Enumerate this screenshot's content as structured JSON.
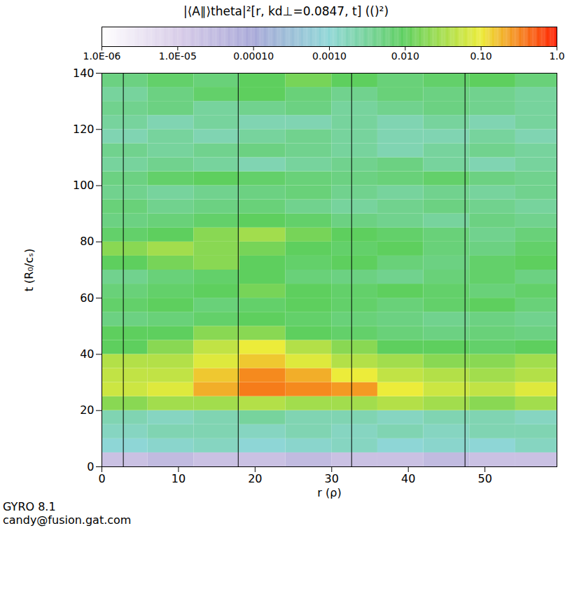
{
  "chart_data": {
    "type": "heatmap",
    "title": "|⟨A∥⟩theta|²[r, kd⊥=0.0847, t] (()²)",
    "x_label": "r (ρ)",
    "y_label": "t (R₀/cₛ)",
    "footer": [
      "GYRO 8.1",
      "candy@fusion.gat.com"
    ],
    "xlim": [
      0,
      59.4
    ],
    "xticks": [
      0,
      10,
      20,
      30,
      40,
      50
    ],
    "ylim": [
      0,
      140
    ],
    "yticks": [
      0,
      20,
      40,
      60,
      80,
      100,
      120,
      140
    ],
    "vlines": [
      2.8,
      17.8,
      32.6,
      47.4
    ],
    "log": "color",
    "colorbar": {
      "range": [
        1e-06,
        1
      ],
      "ticks": [
        {
          "value": 1e-06,
          "label": "1.0E-06"
        },
        {
          "value": 1e-05,
          "label": "1.0E-05"
        },
        {
          "value": 0.0001,
          "label": "0.00010"
        },
        {
          "value": 0.001,
          "label": "0.0010"
        },
        {
          "value": 0.01,
          "label": "0.010"
        },
        {
          "value": 0.1,
          "label": "0.10"
        },
        {
          "value": 1,
          "label": "1.0"
        }
      ]
    },
    "x_bins": [
      0,
      6,
      12,
      18,
      24,
      30,
      36,
      42,
      48,
      54,
      60
    ],
    "y_bins": [
      0,
      5,
      10,
      15,
      20,
      25,
      30,
      35,
      40,
      45,
      50,
      55,
      60,
      65,
      70,
      75,
      80,
      85,
      90,
      95,
      100,
      105,
      110,
      115,
      120,
      125,
      130,
      135,
      140
    ],
    "cells": [
      [
        2e-05,
        3e-05,
        2e-05,
        2e-05,
        3e-05,
        2e-05,
        2e-05,
        3e-05,
        2e-05,
        2e-05
      ],
      [
        0.001,
        0.0012,
        0.0015,
        0.001,
        0.0012,
        0.0015,
        0.001,
        0.0012,
        0.001,
        0.0015
      ],
      [
        0.0015,
        0.002,
        0.002,
        0.0015,
        0.002,
        0.0015,
        0.002,
        0.0015,
        0.002,
        0.002
      ],
      [
        0.002,
        0.0015,
        0.002,
        0.003,
        0.002,
        0.002,
        0.0015,
        0.002,
        0.002,
        0.0015
      ],
      [
        0.02,
        0.03,
        0.03,
        0.04,
        0.03,
        0.03,
        0.04,
        0.03,
        0.02,
        0.03
      ],
      [
        0.06,
        0.08,
        0.2,
        0.35,
        0.3,
        0.25,
        0.1,
        0.06,
        0.05,
        0.08
      ],
      [
        0.05,
        0.05,
        0.15,
        0.3,
        0.2,
        0.1,
        0.05,
        0.04,
        0.03,
        0.04
      ],
      [
        0.04,
        0.04,
        0.08,
        0.15,
        0.08,
        0.04,
        0.03,
        0.02,
        0.02,
        0.03
      ],
      [
        0.01,
        0.02,
        0.05,
        0.1,
        0.04,
        0.02,
        0.01,
        0.01,
        0.008,
        0.01
      ],
      [
        0.01,
        0.01,
        0.02,
        0.02,
        0.01,
        0.008,
        0.006,
        0.005,
        0.006,
        0.005
      ],
      [
        0.005,
        0.006,
        0.008,
        0.01,
        0.008,
        0.006,
        0.005,
        0.004,
        0.005,
        0.004
      ],
      [
        0.008,
        0.01,
        0.006,
        0.008,
        0.01,
        0.008,
        0.006,
        0.008,
        0.01,
        0.006
      ],
      [
        0.006,
        0.008,
        0.01,
        0.015,
        0.01,
        0.008,
        0.01,
        0.008,
        0.006,
        0.008
      ],
      [
        0.004,
        0.006,
        0.008,
        0.01,
        0.006,
        0.005,
        0.004,
        0.006,
        0.008,
        0.005
      ],
      [
        0.01,
        0.015,
        0.02,
        0.01,
        0.008,
        0.01,
        0.006,
        0.005,
        0.008,
        0.01
      ],
      [
        0.02,
        0.03,
        0.02,
        0.015,
        0.01,
        0.008,
        0.01,
        0.006,
        0.005,
        0.008
      ],
      [
        0.008,
        0.01,
        0.02,
        0.03,
        0.015,
        0.01,
        0.008,
        0.006,
        0.004,
        0.006
      ],
      [
        0.005,
        0.006,
        0.008,
        0.01,
        0.008,
        0.005,
        0.004,
        0.003,
        0.005,
        0.004
      ],
      [
        0.006,
        0.004,
        0.005,
        0.006,
        0.004,
        0.003,
        0.004,
        0.005,
        0.004,
        0.003
      ],
      [
        0.004,
        0.003,
        0.004,
        0.005,
        0.006,
        0.004,
        0.003,
        0.004,
        0.003,
        0.004
      ],
      [
        0.005,
        0.008,
        0.01,
        0.008,
        0.006,
        0.005,
        0.006,
        0.008,
        0.005,
        0.004
      ],
      [
        0.003,
        0.004,
        0.003,
        0.002,
        0.003,
        0.004,
        0.005,
        0.003,
        0.002,
        0.003
      ],
      [
        0.004,
        0.003,
        0.004,
        0.005,
        0.004,
        0.003,
        0.002,
        0.003,
        0.004,
        0.003
      ],
      [
        0.002,
        0.003,
        0.002,
        0.003,
        0.004,
        0.003,
        0.002,
        0.002,
        0.003,
        0.002
      ],
      [
        0.003,
        0.002,
        0.003,
        0.002,
        0.002,
        0.003,
        0.002,
        0.003,
        0.002,
        0.003
      ],
      [
        0.004,
        0.005,
        0.003,
        0.004,
        0.005,
        0.003,
        0.004,
        0.005,
        0.004,
        0.003
      ],
      [
        0.003,
        0.005,
        0.008,
        0.01,
        0.006,
        0.004,
        0.006,
        0.005,
        0.004,
        0.003
      ],
      [
        0.005,
        0.008,
        0.006,
        0.01,
        0.015,
        0.01,
        0.006,
        0.008,
        0.01,
        0.006
      ]
    ]
  }
}
